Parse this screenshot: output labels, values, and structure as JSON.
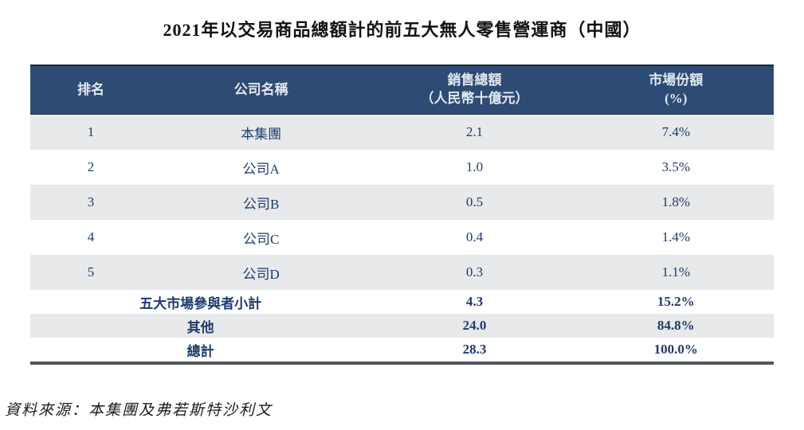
{
  "title": "2021年以交易商品總額計的前五大無人零售營運商（中國）",
  "table": {
    "columns": [
      {
        "label": "排名"
      },
      {
        "label": "公司名稱"
      },
      {
        "label": "銷售總額",
        "sub": "（人民幣十億元）"
      },
      {
        "label": "市場份額",
        "sub": "(%)"
      }
    ],
    "rows": [
      {
        "rank": "1",
        "company": "本集團",
        "sales": "2.1",
        "share": "7.4%"
      },
      {
        "rank": "2",
        "company": "公司A",
        "sales": "1.0",
        "share": "3.5%"
      },
      {
        "rank": "3",
        "company": "公司B",
        "sales": "0.5",
        "share": "1.8%"
      },
      {
        "rank": "4",
        "company": "公司C",
        "sales": "0.4",
        "share": "1.4%"
      },
      {
        "rank": "5",
        "company": "公司D",
        "sales": "0.3",
        "share": "1.1%"
      }
    ],
    "summary": [
      {
        "label": "五大市場參與者小計",
        "sales": "4.3",
        "share": "15.2%"
      },
      {
        "label": "其他",
        "sales": "24.0",
        "share": "84.8%"
      },
      {
        "label": "總計",
        "sales": "28.3",
        "share": "100.0%"
      }
    ]
  },
  "source": "資料來源：本集團及弗若斯特沙利文",
  "colors": {
    "header_background": "#2e4b74",
    "header_text": "#e3e9f1",
    "body_text": "#1f3a6e",
    "stripe_background": "#e8e9eb",
    "bottom_rule": "#53545a"
  }
}
